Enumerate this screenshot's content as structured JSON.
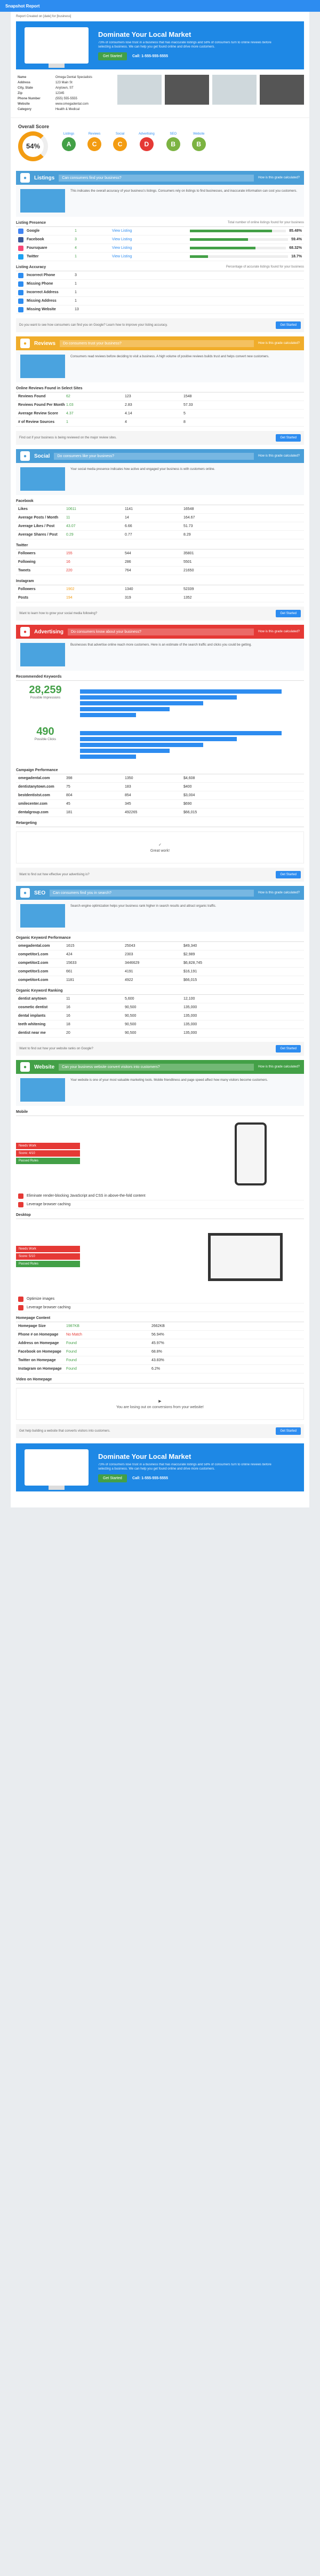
{
  "top": {
    "title": "Snapshot Report"
  },
  "meta": {
    "text": "Report Created on [date] for [business]"
  },
  "hero": {
    "title": "Dominate Your Local Market",
    "body": "73% of consumers lose trust in a business that has inaccurate listings and 58% of consumers turn to online reviews before selecting a business. We can help you get found online and drive more customers.",
    "button": "Get Started",
    "phone": "Call: 1-555-555-5555"
  },
  "business": {
    "rows": [
      {
        "k": "Name",
        "v": "Omega Dental Specialists"
      },
      {
        "k": "Address",
        "v": "123 Main St"
      },
      {
        "k": "City, State",
        "v": "Anytown, ST"
      },
      {
        "k": "Zip",
        "v": "12345"
      },
      {
        "k": "Phone Number",
        "v": "(555) 555-5555"
      },
      {
        "k": "Website",
        "v": "www.omegadental.com"
      },
      {
        "k": "Category",
        "v": "Health & Medical"
      }
    ]
  },
  "score": {
    "title": "Overall Score",
    "value": "54%",
    "grades": [
      {
        "label": "Listings",
        "grade": "A",
        "color": "#43a047"
      },
      {
        "label": "Reviews",
        "grade": "C",
        "color": "#f39c12"
      },
      {
        "label": "Social",
        "grade": "C",
        "color": "#f39c12"
      },
      {
        "label": "Advertising",
        "grade": "D",
        "color": "#e53935"
      },
      {
        "label": "SEO",
        "grade": "B",
        "color": "#7cb342"
      },
      {
        "label": "Website",
        "grade": "B",
        "color": "#7cb342"
      }
    ]
  },
  "sections": {
    "listings": {
      "title": "Listings",
      "question": "Can consumers find your business?",
      "help": "How is this grade calculated?",
      "color": "#4a9fd8",
      "intro": "This indicates the overall accuracy of your business's listings. Consumers rely on listings to find businesses, and inaccurate information can cost you customers.",
      "presence_title": "Listing Presence",
      "presence_right": "Total number of online listings found for your business",
      "sources": [
        {
          "name": "Google",
          "value": "1",
          "link": "View Listing",
          "pct": "85.48%",
          "color": "#4285f4"
        },
        {
          "name": "Facebook",
          "value": "3",
          "link": "View Listing",
          "pct": "59.4%",
          "color": "#3b5998"
        },
        {
          "name": "Foursquare",
          "value": "4",
          "link": "View Listing",
          "pct": "68.32%",
          "color": "#f94877"
        },
        {
          "name": "Twitter",
          "value": "1",
          "link": "View Listing",
          "pct": "18.7%",
          "color": "#1da1f2"
        }
      ],
      "accuracy_title": "Listing Accuracy",
      "accuracy_right": "Percentage of accurate listings found for your business",
      "accuracy": [
        {
          "name": "Incorrect Phone",
          "value": "3"
        },
        {
          "name": "Missing Phone",
          "value": "1"
        },
        {
          "name": "Incorrect Address",
          "value": "1"
        },
        {
          "name": "Missing Address",
          "value": "1"
        },
        {
          "name": "Missing Website",
          "value": "13"
        }
      ],
      "note": "Do you want to see how consumers can find you on Google? Learn how to improve your listing accuracy.",
      "button": "Get Started"
    },
    "reviews": {
      "title": "Reviews",
      "question": "Do consumers trust your business?",
      "help": "How is this grade calculated?",
      "color": "#f0ad2b",
      "intro": "Consumers read reviews before deciding to visit a business. A high volume of positive reviews builds trust and helps convert new customers.",
      "sub": "Online Reviews Found in Select Sites",
      "cols": [
        "Your Business",
        "Industry Average",
        "Industry Leaders"
      ],
      "rows": [
        {
          "name": "Reviews Found",
          "a": "62",
          "b": "123",
          "c": "1548"
        },
        {
          "name": "Reviews Found Per Month",
          "a": "1.03",
          "b": "2.83",
          "c": "57.33"
        },
        {
          "name": "Average Review Score",
          "a": "4.37",
          "b": "4.14",
          "c": "5"
        },
        {
          "name": "# of Review Sources",
          "a": "1",
          "b": "4",
          "c": "8"
        }
      ],
      "note": "Find out if your business is being reviewed on the major review sites.",
      "button": "Get Started"
    },
    "social": {
      "title": "Social",
      "question": "Do consumers like your business?",
      "help": "How is this grade calculated?",
      "color": "#4a9fd8",
      "intro": "Your social media presence indicates how active and engaged your business is with customers online.",
      "facebook_title": "Facebook",
      "facebook": [
        {
          "name": "Likes",
          "a": "10611",
          "b": "1141",
          "c": "16548"
        },
        {
          "name": "Average Posts / Month",
          "a": "11",
          "b": "14",
          "c": "164.67"
        },
        {
          "name": "Average Likes / Post",
          "a": "43.07",
          "b": "6.66",
          "c": "51.73"
        },
        {
          "name": "Average Shares / Post",
          "a": "0.29",
          "b": "0.77",
          "c": "8.29"
        }
      ],
      "twitter_title": "Twitter",
      "twitter": [
        {
          "name": "Followers",
          "a": "155",
          "b": "544",
          "c": "35801"
        },
        {
          "name": "Following",
          "a": "16",
          "b": "286",
          "c": "5501"
        },
        {
          "name": "Tweets",
          "a": "220",
          "b": "764",
          "c": "21650"
        }
      ],
      "instagram_title": "Instagram",
      "instagram": [
        {
          "name": "Followers",
          "a": "1902",
          "b": "1340",
          "c": "52339"
        },
        {
          "name": "Posts",
          "a": "194",
          "b": "319",
          "c": "1352"
        }
      ],
      "note": "Want to learn how to grow your social media following?",
      "button": "Get Started"
    },
    "advertising": {
      "title": "Advertising",
      "question": "Do consumers know about your business?",
      "help": "How is this grade calculated?",
      "color": "#e53935",
      "intro": "Businesses that advertise online reach more customers. Here is an estimate of the search traffic and clicks you could be getting.",
      "sub": "Recommended Keywords",
      "big1": "28,259",
      "big1_label": "Possible Impressions",
      "big2": "490",
      "big2_label": "Possible Clicks",
      "campaign_title": "Campaign Performance",
      "campaign": [
        {
          "name": "omegadental.com",
          "a": "398",
          "b": "1350",
          "c": "$4,608"
        },
        {
          "name": "dentistanytown.com",
          "a": "75",
          "b": "183",
          "c": "$400"
        },
        {
          "name": "bestdentistst.com",
          "a": "804",
          "b": "854",
          "c": "$3,004"
        },
        {
          "name": "smilecenter.com",
          "a": "45",
          "b": "345",
          "c": "$690"
        },
        {
          "name": "dentalgroup.com",
          "a": "181",
          "b": "492265",
          "c": "$66,015"
        }
      ],
      "retarget_title": "Retargeting",
      "great": "Great work!",
      "note": "Want to find out how effective your advertising is?",
      "button": "Get Started"
    },
    "seo": {
      "title": "SEO",
      "question": "Can consumers find you in search?",
      "help": "How is this grade calculated?",
      "color": "#4a9fd8",
      "intro": "Search engine optimization helps your business rank higher in search results and attract organic traffic.",
      "organic_title": "Organic Keyword Performance",
      "organic": [
        {
          "name": "omegadental.com",
          "a": "1615",
          "b": "25043",
          "c": "$49,340"
        },
        {
          "name": "competitor1.com",
          "a": "424",
          "b": "2303",
          "c": "$2,989"
        },
        {
          "name": "competitor2.com",
          "a": "15633",
          "b": "3446629",
          "c": "$6,828,745"
        },
        {
          "name": "competitor3.com",
          "a": "661",
          "b": "4191",
          "c": "$16,191"
        },
        {
          "name": "competitor4.com",
          "a": "1181",
          "b": "4922",
          "c": "$66,015"
        }
      ],
      "ranking_title": "Organic Keyword Ranking",
      "ranking": [
        {
          "name": "dentist anytown",
          "a": "11",
          "b": "5,600",
          "c": "12,100"
        },
        {
          "name": "cosmetic dentist",
          "a": "16",
          "b": "90,500",
          "c": "135,000"
        },
        {
          "name": "dental implants",
          "a": "16",
          "b": "90,500",
          "c": "135,000"
        },
        {
          "name": "teeth whitening",
          "a": "18",
          "b": "90,500",
          "c": "135,000"
        },
        {
          "name": "dentist near me",
          "a": "20",
          "b": "90,500",
          "c": "135,000"
        }
      ],
      "note": "Want to find out how your website ranks on Google?",
      "button": "Get Started"
    },
    "website": {
      "title": "Website",
      "question": "Can your business website convert visitors into customers?",
      "help": "How is this grade calculated?",
      "color": "#43a047",
      "intro": "Your website is one of your most valuable marketing tools. Mobile friendliness and page speed affect how many visitors become customers.",
      "mobile_title": "Mobile",
      "mobile_speed": [
        "Needs Work",
        "Score: 4/10",
        "Passed Rules"
      ],
      "mobile_issues": [
        "Eliminate render-blocking JavaScript and CSS in above-the-fold content",
        "Leverage browser caching"
      ],
      "desktop_title": "Desktop",
      "desktop_speed": [
        "Needs Work",
        "Score: 5/10",
        "Passed Rules"
      ],
      "desktop_issues": [
        "Optimize images",
        "Leverage browser caching"
      ],
      "homepage_title": "Homepage Content",
      "homepage": [
        {
          "name": "Homepage Size",
          "a": "1987KB",
          "b": "2662KB"
        },
        {
          "name": "Phone # on Homepage",
          "a": "No Match",
          "b": "56.94%"
        },
        {
          "name": "Address on Homepage",
          "a": "Found",
          "b": "45.97%"
        },
        {
          "name": "Facebook on Homepage",
          "a": "Found",
          "b": "68.8%"
        },
        {
          "name": "Twitter on Homepage",
          "a": "Found",
          "b": "43.83%"
        },
        {
          "name": "Instagram on Homepage",
          "a": "Found",
          "b": "6.2%"
        }
      ],
      "video_title": "Video on Homepage",
      "video_msg": "You are losing out on conversions from your website!",
      "note": "Get help building a website that converts visitors into customers.",
      "button": "Get Started"
    }
  }
}
